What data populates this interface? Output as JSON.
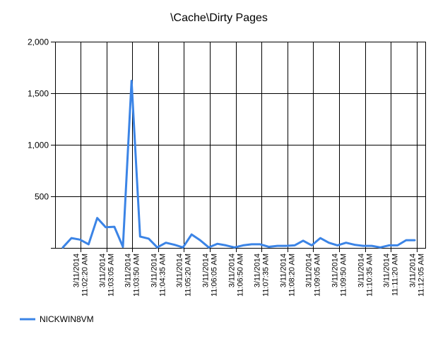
{
  "chart_data": {
    "type": "line",
    "title": "\\Cache\\Dirty Pages",
    "xlabel": "",
    "ylabel": "",
    "ylim": [
      0,
      2000
    ],
    "yticks": [
      0,
      500,
      1000,
      1500,
      2000
    ],
    "ytick_labels": [
      "",
      "500",
      "1,000",
      "1,500",
      "2,000"
    ],
    "grid": true,
    "legend_position": "bottom-left",
    "x_tick_labels": [
      [
        "3/11/2014",
        "11:02:20 AM"
      ],
      [
        "3/11/2014",
        "11:03:05 AM"
      ],
      [
        "3/11/2014",
        "11:03:50 AM"
      ],
      [
        "3/11/2014",
        "11:04:35 AM"
      ],
      [
        "3/11/2014",
        "11:05:20 AM"
      ],
      [
        "3/11/2014",
        "11:06:05 AM"
      ],
      [
        "3/11/2014",
        "11:06:50 AM"
      ],
      [
        "3/11/2014",
        "11:07:35 AM"
      ],
      [
        "3/11/2014",
        "11:08:20 AM"
      ],
      [
        "3/11/2014",
        "11:09:05 AM"
      ],
      [
        "3/11/2014",
        "11:09:50 AM"
      ],
      [
        "3/11/2014",
        "11:10:35 AM"
      ],
      [
        "3/11/2014",
        "11:11:20 AM"
      ],
      [
        "3/11/2014",
        "11:12:05 AM"
      ]
    ],
    "series": [
      {
        "name": "NICKWIN8VM",
        "color": "#3b84e6",
        "values": [
          5,
          95,
          80,
          35,
          290,
          200,
          205,
          10,
          1620,
          110,
          90,
          5,
          50,
          30,
          5,
          130,
          75,
          5,
          40,
          25,
          5,
          25,
          35,
          35,
          10,
          20,
          20,
          25,
          70,
          25,
          95,
          50,
          25,
          50,
          30,
          20,
          20,
          5,
          25,
          25,
          75,
          75
        ]
      }
    ]
  }
}
